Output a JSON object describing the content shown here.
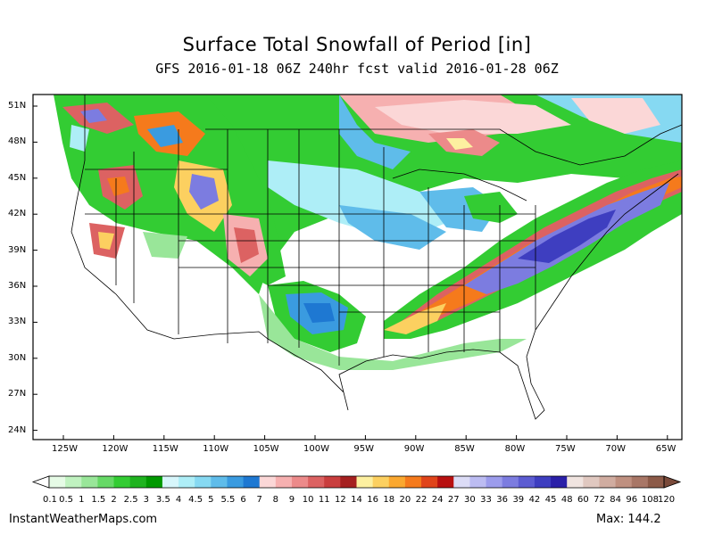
{
  "header": {
    "title": "Surface Total Snowfall of Period [in]",
    "subtitle": "GFS 2016-01-18 06Z 240hr fcst valid 2016-01-28 06Z"
  },
  "map": {
    "lat_labels": [
      "51N",
      "48N",
      "45N",
      "42N",
      "39N",
      "36N",
      "33N",
      "30N",
      "27N",
      "24N"
    ],
    "lon_labels": [
      "125W",
      "120W",
      "115W",
      "110W",
      "105W",
      "100W",
      "95W",
      "90W",
      "85W",
      "80W",
      "75W",
      "70W",
      "65W"
    ]
  },
  "colorbar": {
    "labels": [
      "0.1",
      "0.5",
      "1",
      "1.5",
      "2",
      "2.5",
      "3",
      "3.5",
      "4",
      "4.5",
      "5",
      "5.5",
      "6",
      "7",
      "8",
      "9",
      "10",
      "11",
      "12",
      "14",
      "16",
      "18",
      "20",
      "22",
      "24",
      "27",
      "30",
      "33",
      "36",
      "39",
      "42",
      "45",
      "48",
      "60",
      "72",
      "84",
      "96",
      "108",
      "120"
    ],
    "colors": [
      "#e6fbe6",
      "#c0f2c0",
      "#99e699",
      "#66d966",
      "#33cc33",
      "#1fb31f",
      "#009900",
      "#d7f6fb",
      "#aeeef7",
      "#86d9f2",
      "#5fbcea",
      "#3a9be0",
      "#1e78d2",
      "#fbd7d7",
      "#f6b0b0",
      "#ec8a8a",
      "#dc6262",
      "#c93e3e",
      "#a52020",
      "#fdf0a0",
      "#fcd060",
      "#faa830",
      "#f57a1c",
      "#e0441a",
      "#b81010",
      "#dcdcf6",
      "#bcbcf2",
      "#9c9cec",
      "#7c7ce0",
      "#5c5cd2",
      "#3e3ec0",
      "#2a20a8",
      "#f0e4e0",
      "#e0c8c0",
      "#d0aca0",
      "#bf9080",
      "#a87666",
      "#8c5a48"
    ]
  },
  "footer": {
    "site": "InstantWeatherMaps.com",
    "max": "Max:  144.2"
  }
}
